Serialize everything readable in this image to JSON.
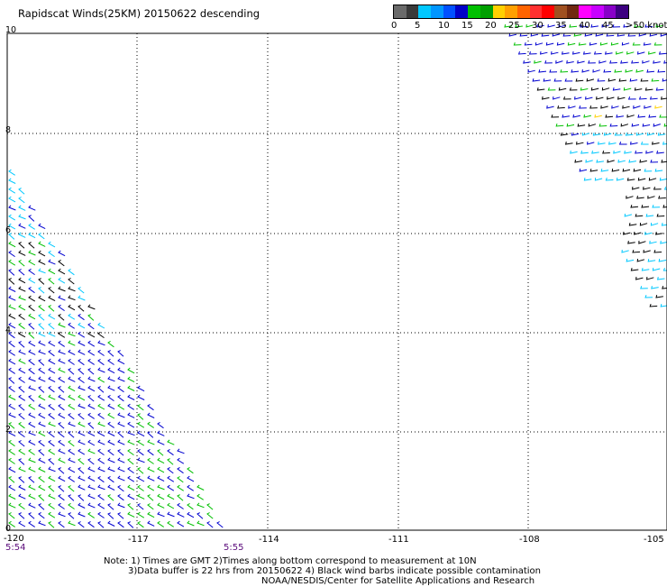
{
  "title": "Rapidscat Winds(25KM) 20150622 descending",
  "legend": {
    "swatches": [
      "#6a6a6a",
      "#3a3a3a",
      "#00c8ff",
      "#0096ff",
      "#0050ff",
      "#0000c8",
      "#00c000",
      "#00a000",
      "#ffd000",
      "#ffa000",
      "#ff6400",
      "#ff3030",
      "#ff0000",
      "#a05020",
      "#702810",
      "#ff00ff",
      "#c800ff",
      "#8800c8",
      "#3c0080"
    ],
    "labels": [
      "0",
      "5",
      "10",
      "15",
      "20",
      "25",
      "30",
      "35",
      "40",
      "45",
      ">50 knots"
    ]
  },
  "axes": {
    "x_ticks": [
      "-120",
      "-117",
      "-114",
      "-111",
      "-108",
      "-105"
    ],
    "y_ticks": [
      "10",
      "8",
      "6",
      "4",
      "2",
      "0"
    ],
    "times": [
      "5:54",
      "5:55"
    ]
  },
  "notes": [
    "Note: 1) Times are GMT 2)Times along bottom correspond to measurement at 10N",
    "3)Data buffer is 22 hrs from 20150622 4) Black wind barbs indicate possible contamination",
    "NOAA/NESDIS/Center for Satellite Applications and Research"
  ],
  "colors": {
    "grid": "#000000",
    "frame": "#000000",
    "time_label": "#5a0a7a",
    "wind_blue": "#0000d0",
    "wind_green": "#00c000",
    "wind_cyan": "#00c8ff",
    "wind_black": "#000000",
    "wind_yellow": "#ffd000"
  }
}
